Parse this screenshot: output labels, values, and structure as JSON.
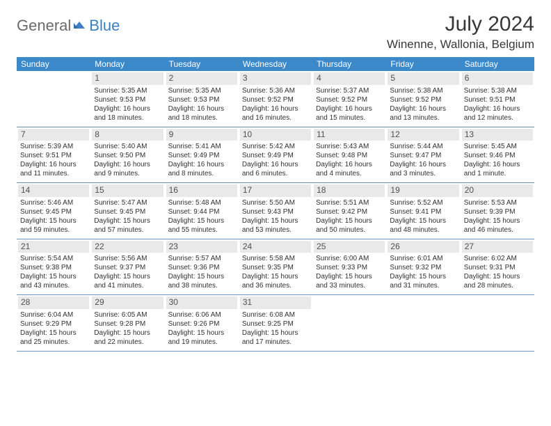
{
  "logo": {
    "part1": "General",
    "part2": "Blue"
  },
  "title": "July 2024",
  "location": "Winenne, Wallonia, Belgium",
  "day_header_bg": "#3b89c9",
  "day_num_bg": "#e9e9e9",
  "divider_color": "#6a92bc",
  "text_color": "#303030",
  "days_of_week": [
    "Sunday",
    "Monday",
    "Tuesday",
    "Wednesday",
    "Thursday",
    "Friday",
    "Saturday"
  ],
  "weeks": [
    [
      null,
      {
        "n": "1",
        "sr": "5:35 AM",
        "ss": "9:53 PM",
        "dl": "16 hours and 18 minutes."
      },
      {
        "n": "2",
        "sr": "5:35 AM",
        "ss": "9:53 PM",
        "dl": "16 hours and 18 minutes."
      },
      {
        "n": "3",
        "sr": "5:36 AM",
        "ss": "9:52 PM",
        "dl": "16 hours and 16 minutes."
      },
      {
        "n": "4",
        "sr": "5:37 AM",
        "ss": "9:52 PM",
        "dl": "16 hours and 15 minutes."
      },
      {
        "n": "5",
        "sr": "5:38 AM",
        "ss": "9:52 PM",
        "dl": "16 hours and 13 minutes."
      },
      {
        "n": "6",
        "sr": "5:38 AM",
        "ss": "9:51 PM",
        "dl": "16 hours and 12 minutes."
      }
    ],
    [
      {
        "n": "7",
        "sr": "5:39 AM",
        "ss": "9:51 PM",
        "dl": "16 hours and 11 minutes."
      },
      {
        "n": "8",
        "sr": "5:40 AM",
        "ss": "9:50 PM",
        "dl": "16 hours and 9 minutes."
      },
      {
        "n": "9",
        "sr": "5:41 AM",
        "ss": "9:49 PM",
        "dl": "16 hours and 8 minutes."
      },
      {
        "n": "10",
        "sr": "5:42 AM",
        "ss": "9:49 PM",
        "dl": "16 hours and 6 minutes."
      },
      {
        "n": "11",
        "sr": "5:43 AM",
        "ss": "9:48 PM",
        "dl": "16 hours and 4 minutes."
      },
      {
        "n": "12",
        "sr": "5:44 AM",
        "ss": "9:47 PM",
        "dl": "16 hours and 3 minutes."
      },
      {
        "n": "13",
        "sr": "5:45 AM",
        "ss": "9:46 PM",
        "dl": "16 hours and 1 minute."
      }
    ],
    [
      {
        "n": "14",
        "sr": "5:46 AM",
        "ss": "9:45 PM",
        "dl": "15 hours and 59 minutes."
      },
      {
        "n": "15",
        "sr": "5:47 AM",
        "ss": "9:45 PM",
        "dl": "15 hours and 57 minutes."
      },
      {
        "n": "16",
        "sr": "5:48 AM",
        "ss": "9:44 PM",
        "dl": "15 hours and 55 minutes."
      },
      {
        "n": "17",
        "sr": "5:50 AM",
        "ss": "9:43 PM",
        "dl": "15 hours and 53 minutes."
      },
      {
        "n": "18",
        "sr": "5:51 AM",
        "ss": "9:42 PM",
        "dl": "15 hours and 50 minutes."
      },
      {
        "n": "19",
        "sr": "5:52 AM",
        "ss": "9:41 PM",
        "dl": "15 hours and 48 minutes."
      },
      {
        "n": "20",
        "sr": "5:53 AM",
        "ss": "9:39 PM",
        "dl": "15 hours and 46 minutes."
      }
    ],
    [
      {
        "n": "21",
        "sr": "5:54 AM",
        "ss": "9:38 PM",
        "dl": "15 hours and 43 minutes."
      },
      {
        "n": "22",
        "sr": "5:56 AM",
        "ss": "9:37 PM",
        "dl": "15 hours and 41 minutes."
      },
      {
        "n": "23",
        "sr": "5:57 AM",
        "ss": "9:36 PM",
        "dl": "15 hours and 38 minutes."
      },
      {
        "n": "24",
        "sr": "5:58 AM",
        "ss": "9:35 PM",
        "dl": "15 hours and 36 minutes."
      },
      {
        "n": "25",
        "sr": "6:00 AM",
        "ss": "9:33 PM",
        "dl": "15 hours and 33 minutes."
      },
      {
        "n": "26",
        "sr": "6:01 AM",
        "ss": "9:32 PM",
        "dl": "15 hours and 31 minutes."
      },
      {
        "n": "27",
        "sr": "6:02 AM",
        "ss": "9:31 PM",
        "dl": "15 hours and 28 minutes."
      }
    ],
    [
      {
        "n": "28",
        "sr": "6:04 AM",
        "ss": "9:29 PM",
        "dl": "15 hours and 25 minutes."
      },
      {
        "n": "29",
        "sr": "6:05 AM",
        "ss": "9:28 PM",
        "dl": "15 hours and 22 minutes."
      },
      {
        "n": "30",
        "sr": "6:06 AM",
        "ss": "9:26 PM",
        "dl": "15 hours and 19 minutes."
      },
      {
        "n": "31",
        "sr": "6:08 AM",
        "ss": "9:25 PM",
        "dl": "15 hours and 17 minutes."
      },
      null,
      null,
      null
    ]
  ],
  "label_sunrise": "Sunrise: ",
  "label_sunset": "Sunset: ",
  "label_daylight": "Daylight: "
}
